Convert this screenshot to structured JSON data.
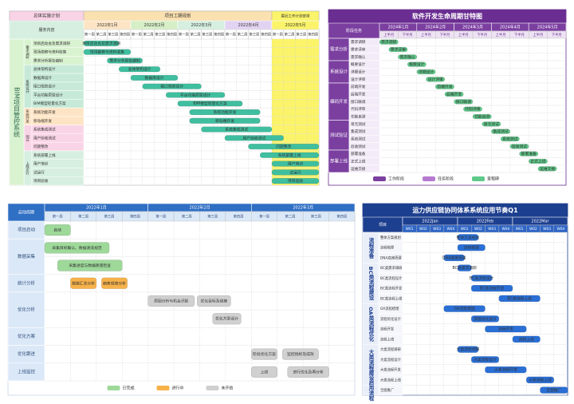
{
  "panels": [
    {
      "type": "gantt",
      "title": "总体实施计划",
      "header": "项目工期规划",
      "note": "最近工作计划安排",
      "system": "BIM项目管控系统",
      "corner": "服务内容",
      "months": [
        "2022年1月",
        "2022年2月",
        "2022年3月",
        "2022年4月",
        "2022年5月"
      ],
      "weeks": [
        "第一周",
        "第二周",
        "第三周",
        "第四周"
      ],
      "title_color": "#f9d3e6",
      "header_color": "#fbe0b0",
      "note_color": "#fbf46a",
      "head_fill": "#d6efe0",
      "week_fill": "#ffffff",
      "system_color": "#d9f2d0",
      "month_colors": [
        "#fde4c4",
        "#d6efc6",
        "#d6efe0",
        "#e3d3f2",
        "#fbf46a"
      ],
      "group_colors": [
        "#d9f2d0",
        "#c7ead8",
        "#fde4c4",
        "#f9d3e6",
        "#d6efe0"
      ],
      "bar_color": "#3fbf9f",
      "border_color": "#bbbbbb",
      "groups": [
        {
          "label": "需求调研",
          "rows": [
            {
              "label": "项目启动会及需求调研",
              "start": 0,
              "end": 3
            },
            {
              "label": "现场勘察与资料收集",
              "start": 0,
              "end": 4
            },
            {
              "label": "需求分析报告编制",
              "start": 2,
              "end": 5
            }
          ]
        },
        {
          "label": "系统设计",
          "rows": [
            {
              "label": "总体架构设计",
              "start": 3,
              "end": 6.5
            },
            {
              "label": "数据库设计",
              "start": 4,
              "end": 8
            },
            {
              "label": "接口规范设计",
              "start": 5,
              "end": 10
            },
            {
              "label": "平台功能原型设计",
              "start": 7,
              "end": 12
            },
            {
              "label": "BIM模型轻量化方案",
              "start": 8,
              "end": 13.5
            }
          ]
        },
        {
          "label": "系统开发",
          "rows": [
            {
              "label": "系统功能开发",
              "start": 9,
              "end": 15
            },
            {
              "label": "移动端开发",
              "start": 9,
              "end": 15
            }
          ]
        },
        {
          "label": "测试",
          "rows": [
            {
              "label": "系统集成测试",
              "start": 10,
              "end": 16
            },
            {
              "label": "用户验收测试",
              "start": 12,
              "end": 17
            },
            {
              "label": "问题整改",
              "start": 14,
              "end": 20
            }
          ]
        },
        {
          "label": "上线运行",
          "rows": [
            {
              "label": "系统部署上线",
              "start": 15,
              "end": 20
            },
            {
              "label": "用户培训",
              "start": 16,
              "end": 20
            },
            {
              "label": "试运行",
              "start": 16,
              "end": 20
            },
            {
              "label": "项目验收",
              "start": 16,
              "end": 20
            }
          ]
        }
      ]
    },
    {
      "type": "gantt",
      "title": "软件开发生命周期甘特图",
      "corner": "阶段任务",
      "months": [
        "2024年1月",
        "2024年2月",
        "2024年3月",
        "2024年4月",
        "2024年5月"
      ],
      "weeks": [
        "上半月",
        "下半月"
      ],
      "title_color": "#6a2d91",
      "head_fill": "#7b3fa0",
      "week_fill": "#ede3f3",
      "month_colors": [
        "#7b3fa0"
      ],
      "group_colors": [
        "#7b3fa0"
      ],
      "row_color": "#f3ecf8",
      "bar_color": "#5fc98a",
      "border_color": "#6a2d91",
      "groups": [
        {
          "label": "需求分析",
          "rows": [
            {
              "label": "需求调研",
              "start": 0,
              "end": 1
            },
            {
              "label": "需求评审",
              "start": 0.5,
              "end": 1.5
            },
            {
              "label": "需求确认",
              "start": 1,
              "end": 2
            }
          ]
        },
        {
          "label": "系统设计",
          "rows": [
            {
              "label": "概要设计",
              "start": 1.5,
              "end": 2.5
            },
            {
              "label": "详细设计",
              "start": 2,
              "end": 3
            },
            {
              "label": "设计评审",
              "start": 2.5,
              "end": 3.5
            }
          ]
        },
        {
          "label": "编码开发",
          "rows": [
            {
              "label": "前端开发",
              "start": 3,
              "end": 4
            },
            {
              "label": "后端开发",
              "start": 3.5,
              "end": 4.5
            },
            {
              "label": "接口联调",
              "start": 4,
              "end": 5
            },
            {
              "label": "代码评审",
              "start": 4.5,
              "end": 5.5
            },
            {
              "label": "功能自测",
              "start": 5,
              "end": 6
            }
          ]
        },
        {
          "label": "测试验证",
          "rows": [
            {
              "label": "单元测试",
              "start": 5.5,
              "end": 6.5
            },
            {
              "label": "集成测试",
              "start": 6,
              "end": 7
            },
            {
              "label": "系统测试",
              "start": 6.5,
              "end": 7.5
            },
            {
              "label": "验收测试",
              "start": 7,
              "end": 8
            }
          ]
        },
        {
          "label": "部署上线",
          "rows": [
            {
              "label": "部署准备",
              "start": 7.5,
              "end": 8.5
            },
            {
              "label": "正式上线",
              "start": 8,
              "end": 9
            },
            {
              "label": "运维交接",
              "start": 8.5,
              "end": 9.5
            }
          ]
        }
      ],
      "legend": [
        {
          "label": "工作阶段",
          "color": "#7b3fa0"
        },
        {
          "label": "任务阶段",
          "color": "#b57ad0"
        },
        {
          "label": "里程碑",
          "color": "#5fc98a"
        }
      ]
    },
    {
      "type": "gantt",
      "corner": "启动周期",
      "months": [
        "2022年1月",
        "2022年2月",
        "2022年3月"
      ],
      "weeks": [
        "第一周",
        "第二周",
        "第三周",
        "第四周"
      ],
      "head_fill": "#2f6fc4",
      "week_fill": "#dbe8f7",
      "month_colors": [
        "#2f6fc4"
      ],
      "group_colors": [
        "#dbe8f7"
      ],
      "bar_color": "#9ed99a",
      "border_color": "#c9d6e8",
      "groups": [
        {
          "label": "项目启动",
          "rows": [
            {
              "tasks": [
                {
                  "label": "启动",
                  "start": 0,
                  "end": 1,
                  "color": "#9ed99a"
                }
              ]
            }
          ]
        },
        {
          "label": "数据采集",
          "rows": [
            {
              "tasks": [
                {
                  "label": "采集目标确认、数据清洗规范",
                  "start": 0,
                  "end": 2.5,
                  "color": "#9ed99a"
                }
              ]
            },
            {
              "tasks": [
                {
                  "label": "采集进度与数据质量检查",
                  "start": 0.5,
                  "end": 3,
                  "color": "#9ed99a"
                }
              ]
            }
          ]
        },
        {
          "label": "统计分析",
          "rows": [
            {
              "tasks": [
                {
                  "label": "数据汇总分析",
                  "start": 1,
                  "end": 2,
                  "color": "#f7b24a"
                },
                {
                  "label": "趋势规律分析",
                  "start": 2.2,
                  "end": 3.2,
                  "color": "#f7b24a"
                }
              ]
            }
          ]
        },
        {
          "label": "优化分析",
          "rows": [
            {
              "tasks": [
                {
                  "label": "原因分析与机会识别",
                  "start": 4,
                  "end": 5.8,
                  "color": "#d0d0d0"
                },
                {
                  "label": "优化目标及措施",
                  "start": 5.9,
                  "end": 7.2,
                  "color": "#d0d0d0"
                }
              ]
            },
            {
              "tasks": [
                {
                  "label": "优化方案设计",
                  "start": 6.5,
                  "end": 7.6,
                  "color": "#d0d0d0"
                }
              ]
            }
          ]
        },
        {
          "label": "优化方案",
          "rows": [
            {
              "tasks": []
            }
          ]
        },
        {
          "label": "优化跟进",
          "rows": [
            {
              "tasks": [
                {
                  "label": "阶段优化方案",
                  "start": 8,
                  "end": 9,
                  "color": "#d0d0d0"
                },
                {
                  "label": "监控指标及成效",
                  "start": 9.2,
                  "end": 10.6,
                  "color": "#d0d0d0"
                }
              ]
            }
          ]
        },
        {
          "label": "上线监控",
          "rows": [
            {
              "tasks": [
                {
                  "label": "上线",
                  "start": 8,
                  "end": 9,
                  "color": "#d0d0d0"
                },
                {
                  "label": "进行优化及再分析",
                  "start": 9.4,
                  "end": 11,
                  "color": "#d0d0d0"
                }
              ]
            }
          ]
        }
      ],
      "legend": [
        {
          "label": "已完成",
          "color": "#9ed99a"
        },
        {
          "label": "进行中",
          "color": "#f7b24a"
        },
        {
          "label": "未开始",
          "color": "#d0d0d0"
        }
      ]
    },
    {
      "type": "gantt",
      "title": "运力供应链协同体系系统应用节奏Q1",
      "corner": "项目",
      "months": [
        "2022Jan",
        "2022Feb",
        "2022Mar"
      ],
      "weeks": [
        "W01",
        "W02",
        "W03",
        "W04"
      ],
      "title_color": "#1d3f8f",
      "head_fill": "#1d3f8f",
      "week_fill": "#2f66c6",
      "month_colors": [
        "#1d3f8f"
      ],
      "group_colors": [
        "#e9eef8"
      ],
      "row_color": "#f4f6fb",
      "bar_color": "#2a6fd6",
      "border_color": "#1d3f8f",
      "groups": [
        {
          "label": "流程准备",
          "rows": [
            {
              "label": "整体方案规划",
              "start": 4,
              "end": 5.5
            },
            {
              "label": "流程梳理",
              "start": 4,
              "end": 6
            },
            {
              "label": "DNA底座搭建",
              "start": 3,
              "end": 4.5
            }
          ]
        },
        {
          "label": "BC类流程建设",
          "rows": [
            {
              "label": "BC类需求调研",
              "start": 4,
              "end": 5
            },
            {
              "label": "BC类流程设计",
              "start": 5,
              "end": 6.5
            },
            {
              "label": "BC类流程开发",
              "start": 5,
              "end": 8
            },
            {
              "label": "BC类流程上线",
              "start": 7,
              "end": 10
            }
          ]
        },
        {
          "label": "OA类流程优化",
          "rows": [
            {
              "label": "OA流程梳理",
              "start": 3,
              "end": 6
            },
            {
              "label": "流程优化设计",
              "start": 5,
              "end": 7
            },
            {
              "label": "流程开发",
              "start": 6,
              "end": 9
            },
            {
              "label": "流程上线",
              "start": 8,
              "end": 10
            }
          ]
        },
        {
          "label": "大类流程建设",
          "rows": [
            {
              "label": "大类流程调研",
              "start": 4,
              "end": 5.5
            },
            {
              "label": "大类流程设计",
              "start": 5,
              "end": 7
            },
            {
              "label": "大类流程开发",
              "start": 6,
              "end": 9
            },
            {
              "label": "大类流程上线",
              "start": 9,
              "end": 11
            }
          ]
        },
        {
          "label": "启用流程",
          "rows": [
            {
              "label": "全面推广",
              "start": 10,
              "end": 12
            }
          ]
        }
      ]
    }
  ]
}
